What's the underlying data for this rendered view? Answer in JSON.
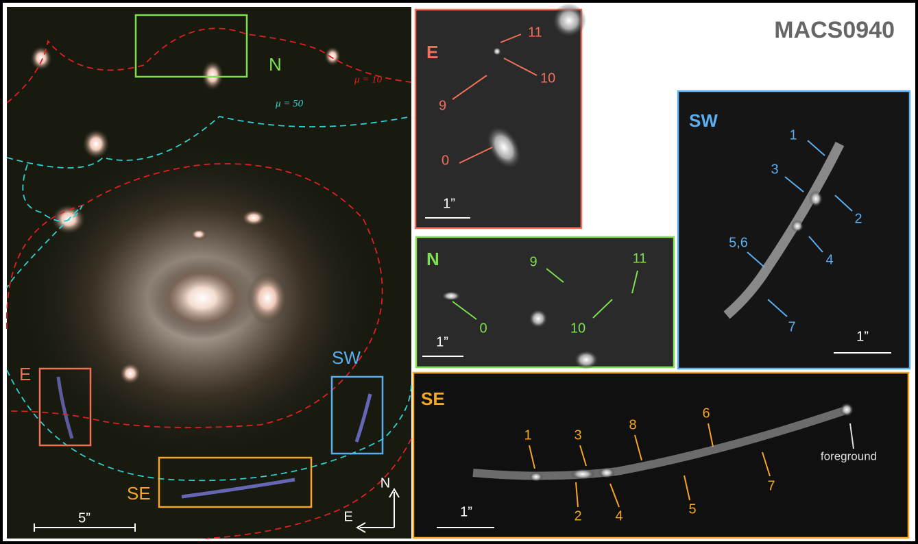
{
  "title": "MACS0940",
  "main_panel": {
    "box_labels": [
      "N",
      "E",
      "SW",
      "SE"
    ],
    "contour_labels": [
      "μ = 10",
      "μ = 50"
    ],
    "scale_bar": "5”",
    "compass": [
      "N",
      "E"
    ]
  },
  "insets": [
    {
      "label": "E",
      "image_labels": [
        "11",
        "10",
        "9",
        "0"
      ],
      "scale_bar": "1”"
    },
    {
      "label": "N",
      "image_labels": [
        "9",
        "11",
        "0",
        "10"
      ],
      "scale_bar": "1”"
    },
    {
      "label": "SW",
      "image_labels": [
        "1",
        "3",
        "2",
        "4",
        "5,6",
        "7"
      ],
      "scale_bar": "1”"
    },
    {
      "label": "SE",
      "image_labels": [
        "1",
        "3",
        "8",
        "6",
        "foreground",
        "2",
        "4",
        "5",
        "7"
      ],
      "scale_bar": "1”"
    }
  ]
}
